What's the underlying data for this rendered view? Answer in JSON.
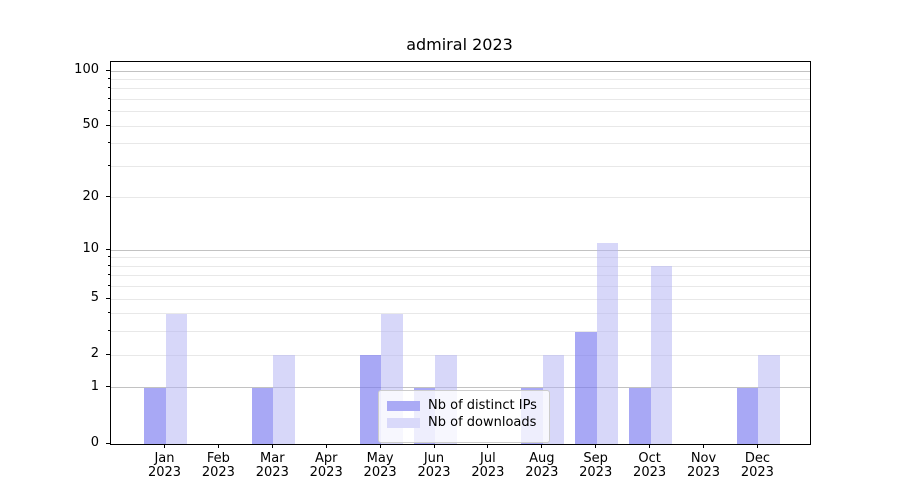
{
  "chart_data": {
    "type": "bar",
    "title": "admiral 2023",
    "categories": [
      "Jan",
      "Feb",
      "Mar",
      "Apr",
      "May",
      "Jun",
      "Jul",
      "Aug",
      "Sep",
      "Oct",
      "Nov",
      "Dec"
    ],
    "x_tick_second_line": "2023",
    "series": [
      {
        "name": "Nb of distinct IPs",
        "color": "#aaaaf5",
        "fill": "rgba(123,123,240,0.66)",
        "values": [
          1,
          0,
          1,
          0,
          2,
          1,
          0,
          1,
          3,
          1,
          0,
          1
        ]
      },
      {
        "name": "Nb of downloads",
        "color": "#d9d9fa",
        "fill": "rgba(178,178,244,0.52)",
        "values": [
          4,
          0,
          2,
          0,
          4,
          2,
          0,
          2,
          11,
          8,
          0,
          2
        ]
      }
    ],
    "xlabel": "",
    "ylabel": "",
    "y_scale": "log1p",
    "ylim": [
      0,
      110
    ],
    "y_ticks_labeled": [
      0,
      1,
      2,
      5,
      10,
      20,
      50,
      100
    ],
    "y_ticks_minor": [
      3,
      4,
      6,
      7,
      8,
      9,
      30,
      40,
      60,
      70,
      80,
      90
    ],
    "y_gridlines_major": [
      1,
      10,
      100
    ],
    "y_gridlines_minor": [
      2,
      3,
      4,
      5,
      6,
      7,
      8,
      9,
      20,
      30,
      40,
      50,
      60,
      70,
      80,
      90
    ],
    "grid": "on",
    "legend": {
      "position": "lower center",
      "frame": true
    },
    "colors": {
      "bar_distinct_ips": "#aaaaf5",
      "bar_downloads": "#d9d9fa",
      "grid_major": "#c2c2c2",
      "grid_minor": "#e8e8e8",
      "axis": "#000000",
      "text": "#000000",
      "legend_border": "#cccccc",
      "background": "#ffffff"
    }
  }
}
